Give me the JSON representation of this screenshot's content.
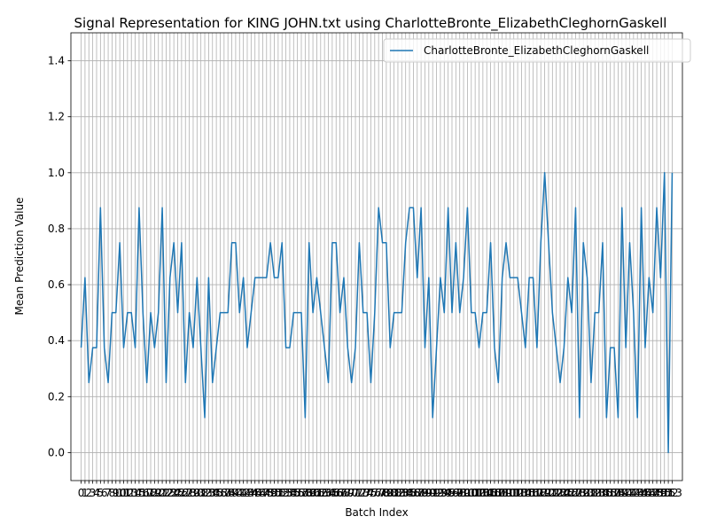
{
  "chart_data": {
    "type": "line",
    "title": "Signal Representation for KING JOHN.txt using CharlotteBronte_ElizabethCleghornGaskell",
    "xlabel": "Batch Index",
    "ylabel": "Mean Prediction Value",
    "ylim": [
      -0.1,
      1.5
    ],
    "yticks": [
      0.0,
      0.2,
      0.4,
      0.6,
      0.8,
      1.0,
      1.2,
      1.4
    ],
    "ytick_labels": [
      "0.0",
      "0.2",
      "0.4",
      "0.6",
      "0.8",
      "1.0",
      "1.2",
      "1.4"
    ],
    "xlim": [
      -2.65,
      155.65
    ],
    "grid": true,
    "legend": "top-right",
    "series": [
      {
        "name": "CharlotteBronte_ElizabethCleghornGaskell",
        "color": "#1f77b4",
        "x": [
          0,
          1,
          2,
          3,
          4,
          5,
          6,
          7,
          8,
          9,
          10,
          11,
          12,
          13,
          14,
          15,
          16,
          17,
          18,
          19,
          20,
          21,
          22,
          23,
          24,
          25,
          26,
          27,
          28,
          29,
          30,
          31,
          32,
          33,
          34,
          35,
          36,
          37,
          38,
          39,
          40,
          41,
          42,
          43,
          44,
          45,
          46,
          47,
          48,
          49,
          50,
          51,
          52,
          53,
          54,
          55,
          56,
          57,
          58,
          59,
          60,
          61,
          62,
          63,
          64,
          65,
          66,
          67,
          68,
          69,
          70,
          71,
          72,
          73,
          74,
          75,
          76,
          77,
          78,
          79,
          80,
          81,
          82,
          83,
          84,
          85,
          86,
          87,
          88,
          89,
          90,
          91,
          92,
          93,
          94,
          95,
          96,
          97,
          98,
          99,
          100,
          101,
          102,
          103,
          104,
          105,
          106,
          107,
          108,
          109,
          110,
          111,
          112,
          113,
          114,
          115,
          116,
          117,
          118,
          119,
          120,
          121,
          122,
          123,
          124,
          125,
          126,
          127,
          128,
          129,
          130,
          131,
          132,
          133,
          134,
          135,
          136,
          137,
          138,
          139,
          140,
          141,
          142,
          143,
          144,
          145,
          146,
          147,
          148,
          149,
          150,
          151,
          152,
          153
        ],
        "y": [
          0.375,
          0.625,
          0.25,
          0.375,
          0.375,
          0.875,
          0.375,
          0.25,
          0.5,
          0.5,
          0.75,
          0.375,
          0.5,
          0.5,
          0.375,
          0.875,
          0.5,
          0.25,
          0.5,
          0.375,
          0.5,
          0.875,
          0.25,
          0.625,
          0.75,
          0.5,
          0.75,
          0.25,
          0.5,
          0.375,
          0.625,
          0.375,
          0.125,
          0.625,
          0.25,
          0.375,
          0.5,
          0.5,
          0.5,
          0.75,
          0.75,
          0.5,
          0.625,
          0.375,
          0.5,
          0.625,
          0.625,
          0.625,
          0.625,
          0.75,
          0.625,
          0.625,
          0.75,
          0.375,
          0.375,
          0.5,
          0.5,
          0.5,
          0.125,
          0.75,
          0.5,
          0.625,
          0.5,
          0.375,
          0.25,
          0.75,
          0.75,
          0.5,
          0.625,
          0.375,
          0.25,
          0.375,
          0.75,
          0.5,
          0.5,
          0.25,
          0.5,
          0.875,
          0.75,
          0.75,
          0.375,
          0.5,
          0.5,
          0.5,
          0.75,
          0.875,
          0.875,
          0.625,
          0.875,
          0.375,
          0.625,
          0.125,
          0.375,
          0.625,
          0.5,
          0.875,
          0.5,
          0.75,
          0.5,
          0.625,
          0.875,
          0.5,
          0.5,
          0.375,
          0.5,
          0.5,
          0.75,
          0.375,
          0.25,
          0.625,
          0.75,
          0.625,
          0.625,
          0.625,
          0.5,
          0.375,
          0.625,
          0.625,
          0.375,
          0.75,
          1.0,
          0.75,
          0.5,
          0.375,
          0.25,
          0.375,
          0.625,
          0.5,
          0.875,
          0.125,
          0.75,
          0.625,
          0.25,
          0.5,
          0.5,
          0.75,
          0.125,
          0.375,
          0.375,
          0.125,
          0.875,
          0.375,
          0.75,
          0.5,
          0.125,
          0.875,
          0.375,
          0.625,
          0.5,
          0.875,
          0.625,
          1.0,
          0.0,
          1.0
        ]
      }
    ]
  }
}
